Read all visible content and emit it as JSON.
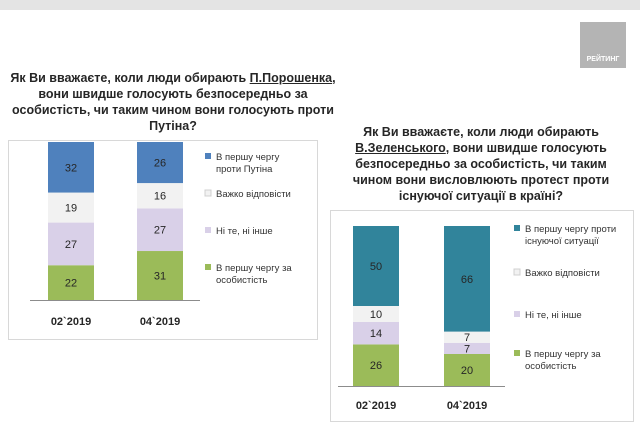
{
  "header": {
    "logo_text": "РЕЙТИНГ"
  },
  "chart_data": [
    {
      "type": "bar",
      "stacked": true,
      "title": {
        "pre": "Як Ви вважаєте, коли люди обирають ",
        "name": "П.Порошенка",
        "post": ", вони швидше голосують безпосередньо за особистість, чи таким чином вони голосують проти Путіна?"
      },
      "categories": [
        "02`2019",
        "04`2019"
      ],
      "series": [
        {
          "name": "В першу чергу за особистість",
          "color": "#9bbb59",
          "values": [
            22,
            31
          ]
        },
        {
          "name": "Ні те, ні інше",
          "color": "#d9d0e8",
          "values": [
            27,
            27
          ]
        },
        {
          "name": "Важко відповісти",
          "color": "#f2f2f2",
          "values": [
            19,
            16
          ]
        },
        {
          "name": "В першу чергу проти Путіна",
          "color": "#4f81bd",
          "values": [
            32,
            26
          ]
        }
      ],
      "legend_order": [
        3,
        2,
        1,
        0
      ],
      "ylim": [
        0,
        100
      ]
    },
    {
      "type": "bar",
      "stacked": true,
      "title": {
        "pre": "Як Ви вважаєте, коли люди обирають ",
        "name": "В.Зеленського",
        "post": ", вони швидше голосують безпосередньо за особистість, чи таким чином вони висловлюють протест проти існуючої ситуації в країні?"
      },
      "categories": [
        "02`2019",
        "04`2019"
      ],
      "series": [
        {
          "name": "В першу чергу за особистість",
          "color": "#9bbb59",
          "values": [
            26,
            20
          ]
        },
        {
          "name": "Ні те, ні інше",
          "color": "#d9d0e8",
          "values": [
            14,
            7
          ]
        },
        {
          "name": "Важко відповісти",
          "color": "#f2f2f2",
          "values": [
            10,
            7
          ]
        },
        {
          "name": "В першу чергу проти існуючої ситуації",
          "color": "#31849b",
          "values": [
            50,
            66
          ]
        }
      ],
      "legend_order": [
        3,
        2,
        1,
        0
      ],
      "ylim": [
        0,
        100
      ]
    }
  ]
}
